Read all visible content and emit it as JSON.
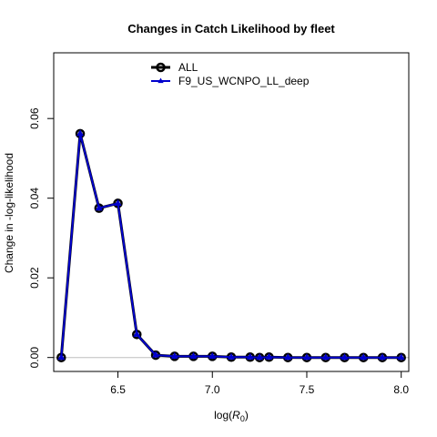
{
  "chart_data": {
    "type": "line",
    "title": "Changes in Catch Likelihood by fleet",
    "xlabel_prefix": "log(",
    "xlabel_var": "R",
    "xlabel_sub": "0",
    "xlabel_suffix": ")",
    "ylabel": "Change in -log-likelihood",
    "xlim": [
      6.16,
      8.04
    ],
    "ylim": [
      -0.0035,
      0.0765
    ],
    "x_ticks": [
      6.5,
      7.0,
      7.5,
      8.0
    ],
    "x_tick_labels": [
      "6.5",
      "7.0",
      "7.5",
      "8.0"
    ],
    "y_ticks": [
      0.0,
      0.02,
      0.04,
      0.06
    ],
    "y_tick_labels": [
      "0.00",
      "0.02",
      "0.04",
      "0.06"
    ],
    "grid": false,
    "legend_position": "top-center",
    "reference_line_y": 0,
    "x": [
      6.2,
      6.3,
      6.4,
      6.5,
      6.6,
      6.7,
      6.8,
      6.9,
      7.0,
      7.1,
      7.2,
      7.25,
      7.3,
      7.4,
      7.5,
      7.6,
      7.7,
      7.8,
      7.9,
      8.0
    ],
    "series": [
      {
        "name": "ALL",
        "color": "#000000",
        "marker": "circle",
        "values": [
          0.0,
          0.0562,
          0.0375,
          0.0387,
          0.0058,
          0.0006,
          0.0003,
          0.0003,
          0.0003,
          0.0001,
          0.0001,
          0.0,
          0.0001,
          0.0,
          0.0,
          0.0,
          0.0,
          0.0,
          0.0,
          0.0
        ]
      },
      {
        "name": "F9_US_WCNPO_LL_deep",
        "color": "#0000cd",
        "marker": "triangle",
        "values": [
          0.0,
          0.0562,
          0.0375,
          0.0387,
          0.0058,
          0.0006,
          0.0003,
          0.0003,
          0.0003,
          0.0001,
          0.0001,
          0.0,
          0.0001,
          0.0,
          0.0,
          0.0,
          0.0,
          0.0,
          0.0,
          0.0
        ]
      }
    ]
  }
}
